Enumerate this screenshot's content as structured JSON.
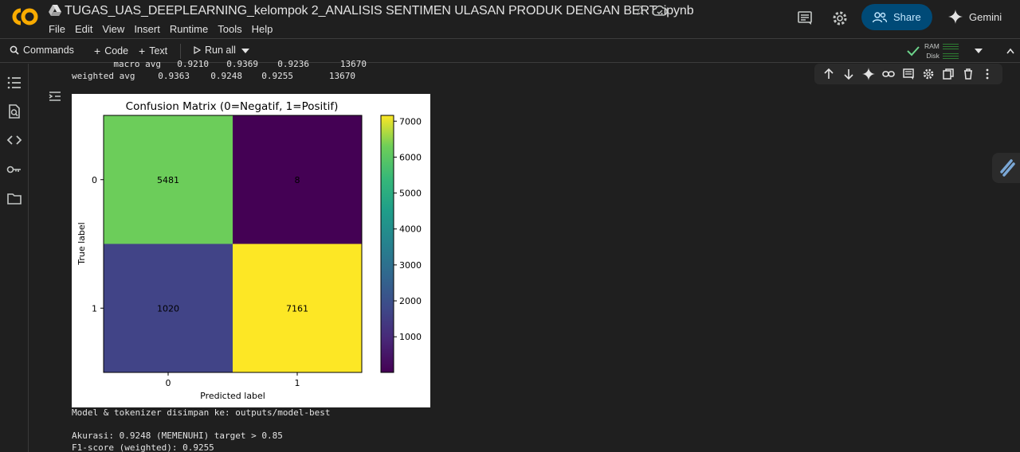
{
  "header": {
    "logo_text": "CO",
    "notebook_title": "TUGAS_UAS_DEEPLEARNING_kelompok 2_ANALISIS SENTIMEN ULASAN PRODUK DENGAN BERT .ipynb",
    "menu": [
      "File",
      "Edit",
      "View",
      "Insert",
      "Runtime",
      "Tools",
      "Help"
    ],
    "share_label": "Share",
    "gemini_label": "Gemini",
    "icons": [
      "comment-icon",
      "settings-icon",
      "star-icon",
      "cloud-saved-icon"
    ]
  },
  "toolbar": {
    "commands_label": "Commands",
    "code_label": "Code",
    "text_label": "Text",
    "run_all_label": "Run all",
    "ram_label": "RAM",
    "disk_label": "Disk"
  },
  "output": {
    "report_rows": [
      {
        "label": "macro avg",
        "precision": "0.9210",
        "recall": "0.9369",
        "f1": "0.9236",
        "support": "13670"
      },
      {
        "label": "weighted avg",
        "precision": "0.9363",
        "recall": "0.9248",
        "f1": "0.9255",
        "support": "13670"
      }
    ],
    "line_saved": "Model & tokenizer disimpan ke: outputs/model-best",
    "line_accuracy": "Akurasi: 0.9248 (MEMENUHI) target > 0.85",
    "line_f1": "F1-score (weighted): 0.9255"
  },
  "chart_data": {
    "type": "heatmap",
    "title": "Confusion Matrix (0=Negatif, 1=Positif)",
    "xlabel": "Predicted label",
    "ylabel": "True label",
    "x_categories": [
      "0",
      "1"
    ],
    "y_categories": [
      "0",
      "1"
    ],
    "values": [
      [
        5481,
        8
      ],
      [
        1020,
        7161
      ]
    ],
    "colormap": "viridis",
    "colorbar_ticks": [
      1000,
      2000,
      3000,
      4000,
      5000,
      6000,
      7000
    ],
    "value_range": [
      8,
      7161
    ],
    "cell_colors": [
      [
        "#6ccd5a",
        "#440154"
      ],
      [
        "#414487",
        "#fde725"
      ]
    ]
  }
}
